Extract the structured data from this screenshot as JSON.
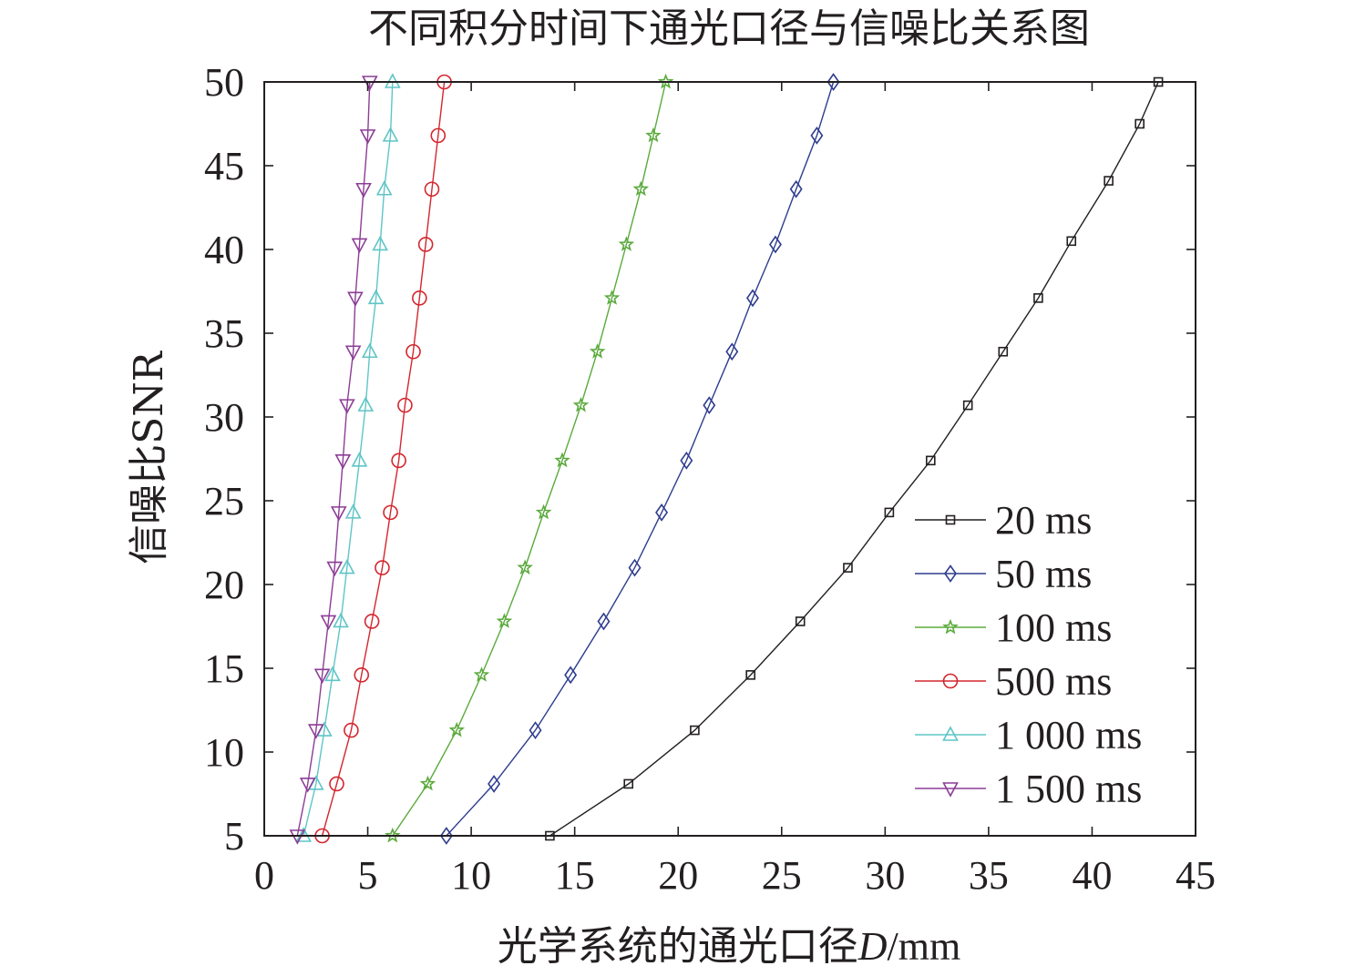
{
  "chart_data": {
    "type": "line",
    "title": "不同积分时间下通光口径与信噪比关系图",
    "xlabel": {
      "prefix": "光学系统的通光口径",
      "variable": "D",
      "unit": "/mm"
    },
    "ylabel": "信噪比SNR",
    "xlim": [
      0,
      45
    ],
    "ylim": [
      5,
      50
    ],
    "xticks": [
      0,
      5,
      10,
      15,
      20,
      25,
      30,
      35,
      40,
      45
    ],
    "yticks": [
      5,
      10,
      15,
      20,
      25,
      30,
      35,
      40,
      45,
      50
    ],
    "grid": false,
    "legend_position": "bottom-right",
    "series": [
      {
        "name": "20 ms",
        "color": "#231f20",
        "marker": "square",
        "x": [
          13.8,
          17.6,
          20.8,
          23.5,
          25.9,
          28.2,
          30.2,
          32.2,
          34.0,
          35.7,
          37.4,
          39.0,
          40.8,
          42.3,
          43.2
        ],
        "y": [
          5.0,
          8.1,
          11.3,
          14.6,
          17.8,
          21.0,
          24.3,
          27.4,
          30.7,
          33.9,
          37.1,
          40.5,
          44.1,
          47.5,
          50.0
        ]
      },
      {
        "name": "50 ms",
        "color": "#2e3d8f",
        "marker": "diamond",
        "x": [
          8.8,
          11.1,
          13.1,
          14.8,
          16.4,
          17.9,
          19.2,
          20.4,
          21.5,
          22.6,
          23.6,
          24.7,
          25.7,
          26.7,
          27.5
        ],
        "y": [
          5.0,
          8.1,
          11.3,
          14.6,
          17.8,
          21.0,
          24.3,
          27.4,
          30.7,
          33.9,
          37.1,
          40.3,
          43.6,
          46.8,
          50.0
        ]
      },
      {
        "name": "100 ms",
        "color": "#5aaa3c",
        "marker": "star",
        "x": [
          6.2,
          7.9,
          9.3,
          10.5,
          11.6,
          12.6,
          13.5,
          14.4,
          15.3,
          16.1,
          16.8,
          17.5,
          18.2,
          18.8,
          19.4
        ],
        "y": [
          5.0,
          8.1,
          11.3,
          14.6,
          17.8,
          21.0,
          24.3,
          27.4,
          30.7,
          33.9,
          37.1,
          40.3,
          43.6,
          46.8,
          50.0
        ]
      },
      {
        "name": "500 ms",
        "color": "#d3262e",
        "marker": "circle",
        "x": [
          2.8,
          3.5,
          4.2,
          4.7,
          5.2,
          5.7,
          6.1,
          6.5,
          6.8,
          7.2,
          7.5,
          7.8,
          8.1,
          8.4,
          8.7
        ],
        "y": [
          5.0,
          8.1,
          11.3,
          14.6,
          17.8,
          21.0,
          24.3,
          27.4,
          30.7,
          33.9,
          37.1,
          40.3,
          43.6,
          46.8,
          50.0
        ]
      },
      {
        "name": "1 000 ms",
        "color": "#5fc5c6",
        "marker": "triangle-up",
        "x": [
          1.9,
          2.5,
          2.9,
          3.3,
          3.7,
          4.0,
          4.3,
          4.6,
          4.9,
          5.1,
          5.4,
          5.6,
          5.8,
          6.1,
          6.2
        ],
        "y": [
          5.0,
          8.1,
          11.3,
          14.6,
          17.8,
          21.0,
          24.3,
          27.4,
          30.7,
          33.9,
          37.1,
          40.3,
          43.6,
          46.8,
          50.0
        ]
      },
      {
        "name": "1 500 ms",
        "color": "#8c3d96",
        "marker": "triangle-down",
        "x": [
          1.6,
          2.1,
          2.5,
          2.8,
          3.1,
          3.4,
          3.6,
          3.8,
          4.0,
          4.3,
          4.4,
          4.6,
          4.8,
          5.0,
          5.1
        ],
        "y": [
          5.0,
          8.1,
          11.3,
          14.6,
          17.8,
          21.0,
          24.3,
          27.4,
          30.7,
          33.9,
          37.1,
          40.3,
          43.6,
          46.8,
          50.0
        ]
      }
    ]
  }
}
